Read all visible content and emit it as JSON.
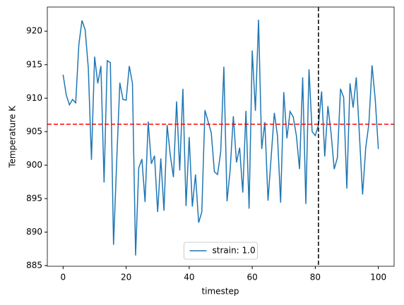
{
  "chart_data": {
    "type": "line",
    "xlabel": "timestep",
    "ylabel": "Temperature K",
    "x": [
      0,
      1,
      2,
      3,
      4,
      5,
      6,
      7,
      8,
      9,
      10,
      11,
      12,
      13,
      14,
      15,
      16,
      17,
      18,
      19,
      20,
      21,
      22,
      23,
      24,
      25,
      26,
      27,
      28,
      29,
      30,
      31,
      32,
      33,
      34,
      35,
      36,
      37,
      38,
      39,
      40,
      41,
      42,
      43,
      44,
      45,
      46,
      47,
      48,
      49,
      50,
      51,
      52,
      53,
      54,
      55,
      56,
      57,
      58,
      59,
      60,
      61,
      62,
      63,
      64,
      65,
      66,
      67,
      68,
      69,
      70,
      71,
      72,
      73,
      74,
      75,
      76,
      77,
      78,
      79,
      80,
      81,
      82,
      83,
      84,
      85,
      86,
      87,
      88,
      89,
      90,
      91,
      92,
      93,
      94,
      95,
      96,
      97,
      98,
      99,
      100
    ],
    "series": [
      {
        "name": "strain: 1.0",
        "color": "#1f77b4",
        "values": [
          913.5,
          910.5,
          909,
          909.8,
          909.3,
          918,
          921.6,
          920.2,
          914.5,
          900.8,
          916.2,
          912.2,
          914.8,
          897.4,
          915.6,
          915.3,
          888.1,
          900.5,
          912.3,
          909.8,
          909.7,
          914.8,
          912.2,
          886.5,
          899.6,
          900.9,
          894.5,
          906.5,
          900.2,
          901.4,
          893,
          901,
          893.2,
          906,
          901.5,
          898.2,
          909.5,
          899.2,
          911.4,
          893.9,
          904.2,
          893.8,
          898.6,
          891.4,
          893,
          908.2,
          906.5,
          904.8,
          899,
          898.6,
          902,
          914.7,
          894.6,
          899.3,
          907.3,
          900.4,
          902.6,
          895.9,
          908.1,
          893.5,
          917.1,
          908.1,
          921.7,
          902.4,
          906.4,
          894.7,
          901.2,
          907.8,
          904.4,
          894.4,
          910.9,
          904,
          908,
          907.2,
          904.4,
          899.4,
          913.1,
          894.2,
          914.3,
          905,
          904.4,
          906,
          911,
          901.3,
          908.8,
          904.8,
          899.4,
          901.1,
          911.4,
          910.1,
          896.5,
          912.2,
          908.6,
          913.1,
          904.5,
          895.6,
          902.6,
          906.2,
          914.9,
          909.9,
          902.4
        ]
      }
    ],
    "hline": {
      "y": 906.1,
      "color": "#ff0000"
    },
    "vline": {
      "x": 81,
      "color": "#000000"
    },
    "xlim": [
      -5,
      105
    ],
    "xticks": [
      0,
      20,
      40,
      60,
      80,
      100
    ],
    "ylim": [
      884.9,
      923.6
    ],
    "yticks": [
      885,
      890,
      895,
      900,
      905,
      910,
      915,
      920
    ],
    "legend": "lower center"
  }
}
